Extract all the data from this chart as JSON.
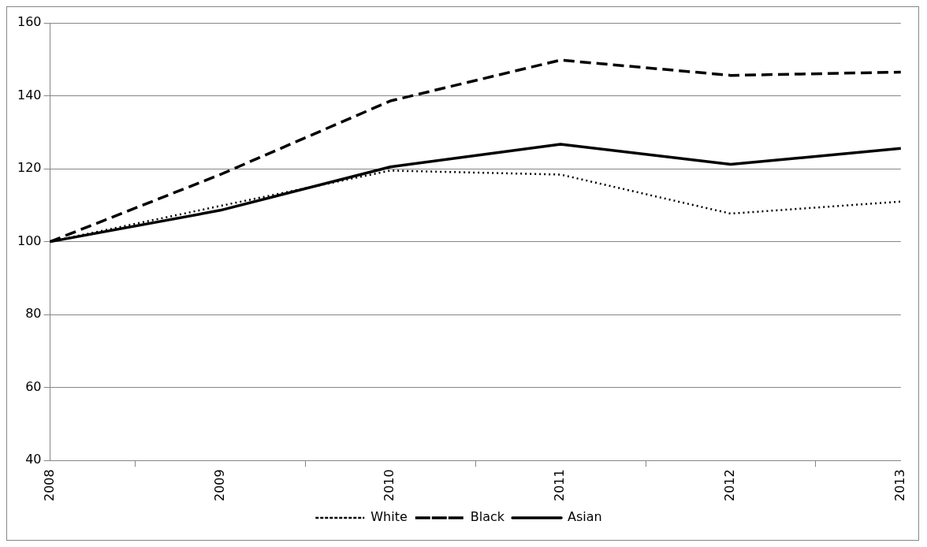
{
  "chart_data": {
    "type": "line",
    "categories": [
      "2008",
      "2009",
      "2010",
      "2011",
      "2012",
      "2013"
    ],
    "series": [
      {
        "name": "White",
        "color": "#000000",
        "line_style": "dotted",
        "values": [
          100,
          109.8,
          119.5,
          118.4,
          107.7,
          111
        ]
      },
      {
        "name": "Black",
        "color": "#000000",
        "line_style": "dashed",
        "values": [
          100,
          118.4,
          138.6,
          149.8,
          145.6,
          146.5
        ]
      },
      {
        "name": "Asian",
        "color": "#000000",
        "line_style": "solid",
        "values": [
          100,
          108.6,
          120.5,
          126.7,
          121.2,
          125.6
        ]
      }
    ],
    "ylim": [
      40,
      160
    ],
    "yticks": [
      40,
      60,
      80,
      100,
      120,
      140,
      160
    ],
    "grid": "y",
    "legend": "bottom",
    "marker": "none"
  }
}
